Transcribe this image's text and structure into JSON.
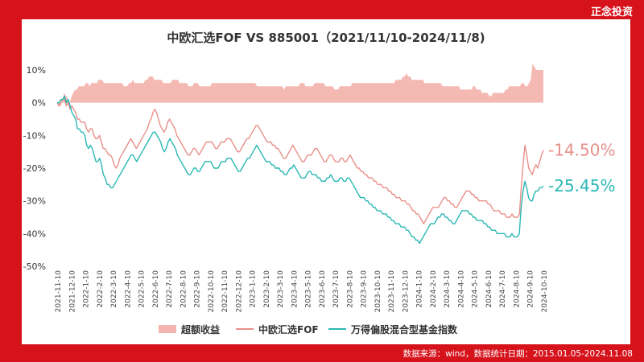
{
  "brand": "正念投资",
  "source_note": "数据来源：wind，数据统计日期：2015.01.05-2024.11.08",
  "chart_data": {
    "type": "line",
    "title": "中欧汇选FOF VS 885001（2021/11/10-2024/11/8)",
    "ylim": [
      -50,
      10
    ],
    "y_ticks": [
      "10%",
      "0%",
      "-10%",
      "-20%",
      "-30%",
      "-40%",
      "-50%"
    ],
    "x_ticks": [
      "2021-11-10",
      "2021-12-10",
      "2022-1-10",
      "2022-2-10",
      "2022-3-10",
      "2022-4-10",
      "2022-5-10",
      "2022-6-10",
      "2022-7-10",
      "2022-8-10",
      "2022-9-10",
      "2022-10-10",
      "2022-11-10",
      "2022-12-10",
      "2023-1-10",
      "2023-2-10",
      "2023-3-10",
      "2023-4-10",
      "2023-5-10",
      "2023-6-10",
      "2023-7-10",
      "2023-8-10",
      "2023-9-10",
      "2023-10-10",
      "2023-11-10",
      "2023-12-10",
      "2024-1-10",
      "2024-2-10",
      "2024-3-10",
      "2024-4-10",
      "2024-5-10",
      "2024-6-10",
      "2024-7-10",
      "2024-8-10",
      "2024-9-10",
      "2024-10-10"
    ],
    "grid": "none",
    "legend_position": "bottom",
    "series": [
      {
        "name": "超额收益",
        "kind": "area",
        "color": "#f4b5b0",
        "values": [
          0,
          -1,
          -1,
          1,
          3,
          2,
          1,
          0,
          2,
          3,
          4,
          4,
          5,
          5,
          5,
          5,
          6,
          6,
          5,
          6,
          6,
          6,
          6,
          7,
          7,
          7,
          6,
          6,
          6,
          6,
          6,
          6,
          6,
          6,
          6,
          6,
          6,
          5,
          5,
          5,
          6,
          6,
          7,
          6,
          6,
          6,
          6,
          6,
          6,
          7,
          7,
          8,
          8,
          8,
          7,
          7,
          7,
          7,
          7,
          6,
          6,
          6,
          6,
          6,
          7,
          7,
          7,
          7,
          6,
          6,
          6,
          6,
          6,
          5,
          5,
          5,
          6,
          6,
          6,
          5,
          5,
          5,
          5,
          5,
          5,
          5,
          6,
          6,
          6,
          6,
          6,
          6,
          6,
          6,
          6,
          6,
          6,
          6,
          6,
          6,
          6,
          6,
          6,
          6,
          6,
          6,
          6,
          6,
          6,
          6,
          6,
          5,
          5,
          5,
          5,
          5,
          5,
          5,
          5,
          5,
          5,
          5,
          5,
          5,
          5,
          5,
          4,
          5,
          5,
          5,
          5,
          5,
          5,
          5,
          5,
          6,
          6,
          6,
          5,
          5,
          5,
          5,
          5,
          6,
          6,
          6,
          6,
          6,
          6,
          5,
          5,
          5,
          5,
          5,
          4,
          4,
          4,
          5,
          5,
          5,
          5,
          5,
          5,
          5,
          6,
          6,
          6,
          6,
          6,
          6,
          6,
          6,
          6,
          6,
          6,
          6,
          6,
          6,
          6,
          6,
          6,
          6,
          6,
          6,
          6,
          6,
          6,
          6,
          7,
          7,
          7,
          7,
          8,
          8,
          9,
          8,
          8,
          7,
          7,
          7,
          7,
          7,
          7,
          7,
          6,
          6,
          6,
          6,
          6,
          6,
          6,
          6,
          6,
          6,
          5,
          5,
          5,
          5,
          5,
          5,
          5,
          5,
          5,
          5,
          4,
          4,
          4,
          4,
          4,
          4,
          4,
          5,
          5,
          4,
          4,
          4,
          3,
          3,
          3,
          3,
          2,
          2,
          3,
          3,
          3,
          3,
          3,
          3,
          3,
          4,
          4,
          5,
          5,
          5,
          5,
          5,
          5,
          5,
          6,
          6,
          5,
          5,
          6,
          7,
          12,
          11,
          10,
          10,
          10,
          10,
          10
        ]
      },
      {
        "name": "中欧汇选FOF",
        "kind": "line",
        "color": "#e8908a",
        "end_label": "-14.50%",
        "values": [
          0,
          -1,
          0,
          1,
          1,
          -1,
          0,
          -2,
          -1,
          -2,
          -3,
          -5,
          -5,
          -6,
          -6,
          -6,
          -8,
          -9,
          -8,
          -8,
          -10,
          -11,
          -11,
          -10,
          -12,
          -14,
          -14,
          -15,
          -16,
          -16,
          -17,
          -19,
          -20,
          -19,
          -17,
          -16,
          -15,
          -14,
          -13,
          -12,
          -11,
          -12,
          -13,
          -14,
          -13,
          -12,
          -11,
          -10,
          -9,
          -8,
          -6,
          -5,
          -3,
          -2,
          -3,
          -5,
          -7,
          -8,
          -9,
          -8,
          -6,
          -5,
          -6,
          -7,
          -8,
          -10,
          -11,
          -12,
          -13,
          -14,
          -15,
          -16,
          -16,
          -15,
          -14,
          -14,
          -15,
          -16,
          -15,
          -14,
          -13,
          -12,
          -12,
          -12,
          -12,
          -13,
          -14,
          -14,
          -13,
          -12,
          -12,
          -12,
          -11,
          -11,
          -11,
          -12,
          -13,
          -14,
          -15,
          -15,
          -14,
          -13,
          -12,
          -11,
          -11,
          -10,
          -9,
          -8,
          -7,
          -7,
          -8,
          -9,
          -10,
          -11,
          -12,
          -12,
          -12,
          -13,
          -13,
          -14,
          -14,
          -15,
          -16,
          -17,
          -17,
          -16,
          -15,
          -14,
          -13,
          -14,
          -15,
          -16,
          -17,
          -18,
          -18,
          -17,
          -16,
          -16,
          -16,
          -15,
          -14,
          -14,
          -15,
          -16,
          -17,
          -18,
          -18,
          -17,
          -16,
          -16,
          -17,
          -18,
          -18,
          -18,
          -17,
          -17,
          -18,
          -18,
          -17,
          -16,
          -17,
          -18,
          -19,
          -20,
          -20,
          -21,
          -21,
          -22,
          -22,
          -23,
          -23,
          -23,
          -24,
          -24,
          -25,
          -25,
          -25,
          -26,
          -26,
          -26,
          -27,
          -27,
          -28,
          -28,
          -29,
          -29,
          -29,
          -30,
          -30,
          -30,
          -31,
          -31,
          -32,
          -33,
          -33,
          -34,
          -34,
          -35,
          -36,
          -37,
          -36,
          -35,
          -34,
          -33,
          -32,
          -32,
          -32,
          -32,
          -31,
          -30,
          -29,
          -29,
          -30,
          -30,
          -31,
          -31,
          -32,
          -32,
          -31,
          -30,
          -29,
          -28,
          -27,
          -27,
          -27,
          -28,
          -28,
          -29,
          -29,
          -30,
          -30,
          -30,
          -30,
          -30,
          -31,
          -31,
          -32,
          -33,
          -33,
          -33,
          -33,
          -34,
          -34,
          -34,
          -35,
          -35,
          -35,
          -34,
          -35,
          -35,
          -35,
          -34,
          -26,
          -19,
          -13,
          -16,
          -20,
          -21,
          -22,
          -20,
          -19,
          -20,
          -18,
          -16,
          -14.5
        ]
      },
      {
        "name": "万得偏股混合型基金指数",
        "kind": "line",
        "color": "#2bb8b4",
        "end_label": "-25.45%",
        "values": [
          0,
          0,
          1,
          1,
          2,
          0,
          1,
          -1,
          -3,
          -4,
          -5,
          -8,
          -8,
          -9,
          -9,
          -10,
          -13,
          -14,
          -13,
          -14,
          -16,
          -18,
          -18,
          -17,
          -19,
          -22,
          -23,
          -25,
          -25,
          -26,
          -26,
          -25,
          -24,
          -23,
          -22,
          -21,
          -20,
          -19,
          -18,
          -17,
          -16,
          -16,
          -17,
          -18,
          -17,
          -16,
          -15,
          -14,
          -13,
          -12,
          -11,
          -10,
          -9,
          -9,
          -10,
          -11,
          -12,
          -14,
          -15,
          -14,
          -12,
          -11,
          -12,
          -13,
          -14,
          -16,
          -17,
          -18,
          -19,
          -20,
          -21,
          -22,
          -22,
          -21,
          -20,
          -20,
          -21,
          -21,
          -20,
          -19,
          -18,
          -18,
          -18,
          -18,
          -19,
          -20,
          -20,
          -20,
          -19,
          -18,
          -18,
          -18,
          -17,
          -17,
          -17,
          -18,
          -19,
          -20,
          -21,
          -21,
          -20,
          -19,
          -18,
          -17,
          -17,
          -16,
          -15,
          -14,
          -13,
          -14,
          -15,
          -16,
          -17,
          -18,
          -18,
          -18,
          -19,
          -19,
          -20,
          -20,
          -20,
          -21,
          -21,
          -22,
          -22,
          -21,
          -20,
          -20,
          -19,
          -20,
          -21,
          -22,
          -23,
          -23,
          -23,
          -22,
          -21,
          -21,
          -22,
          -22,
          -22,
          -23,
          -23,
          -24,
          -24,
          -24,
          -23,
          -23,
          -22,
          -23,
          -24,
          -24,
          -24,
          -23,
          -23,
          -24,
          -24,
          -23,
          -23,
          -24,
          -25,
          -26,
          -27,
          -28,
          -29,
          -29,
          -29,
          -30,
          -30,
          -31,
          -31,
          -32,
          -32,
          -33,
          -33,
          -33,
          -34,
          -34,
          -34,
          -35,
          -35,
          -36,
          -36,
          -37,
          -37,
          -37,
          -38,
          -38,
          -38,
          -39,
          -39,
          -40,
          -41,
          -41,
          -42,
          -42,
          -43,
          -42,
          -41,
          -40,
          -39,
          -38,
          -37,
          -37,
          -37,
          -36,
          -35,
          -35,
          -34,
          -34,
          -35,
          -35,
          -36,
          -36,
          -37,
          -37,
          -36,
          -35,
          -34,
          -33,
          -33,
          -33,
          -33,
          -34,
          -34,
          -35,
          -35,
          -36,
          -36,
          -36,
          -36,
          -37,
          -37,
          -38,
          -38,
          -39,
          -39,
          -39,
          -40,
          -40,
          -40,
          -40,
          -40,
          -41,
          -41,
          -41,
          -40,
          -41,
          -41,
          -41,
          -40,
          -32,
          -27,
          -24,
          -26,
          -29,
          -30,
          -30,
          -28,
          -27,
          -27,
          -26,
          -26,
          -25.45
        ]
      }
    ]
  }
}
